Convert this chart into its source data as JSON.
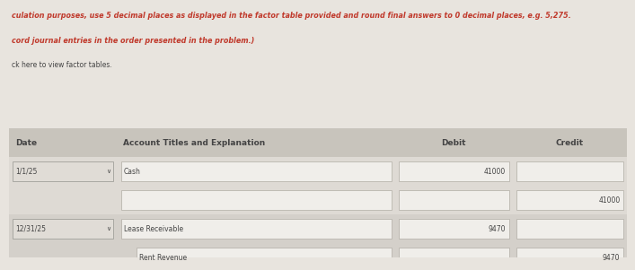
{
  "bg_color": "#e8e4de",
  "header_bg": "#c8c4bc",
  "header_text_color": "#444444",
  "body_bg": "#dedad4",
  "cell_bg": "#f0eeea",
  "cell_border": "#b0aca4",
  "text_color": "#444444",
  "red_text_color": "#c0392b",
  "date_box_bg": "#e0dcd6",
  "date_box_border": "#a0a09a",
  "top_lines": [
    "culation purposes, use 5 decimal places as displayed in the factor table provided and round final answers to 0 decimal places, e.g. 5,275.",
    "cord journal entries in the order presented in the problem.)"
  ],
  "link_line": "ck here to view factor tables.",
  "columns": [
    "Date",
    "Account Titles and Explanation",
    "Debit",
    "Credit"
  ],
  "rows": [
    {
      "date": "1/1/25",
      "account": "Cash",
      "debit": "41000",
      "credit": "",
      "indent": false
    },
    {
      "date": "",
      "account": "",
      "debit": "",
      "credit": "41000",
      "indent": false
    },
    {
      "date": "12/31/25",
      "account": "Lease Receivable",
      "debit": "9470",
      "credit": "",
      "indent": false
    },
    {
      "date": "",
      "account": "Rent Revenue",
      "debit": "",
      "credit": "9470",
      "indent": true
    }
  ]
}
